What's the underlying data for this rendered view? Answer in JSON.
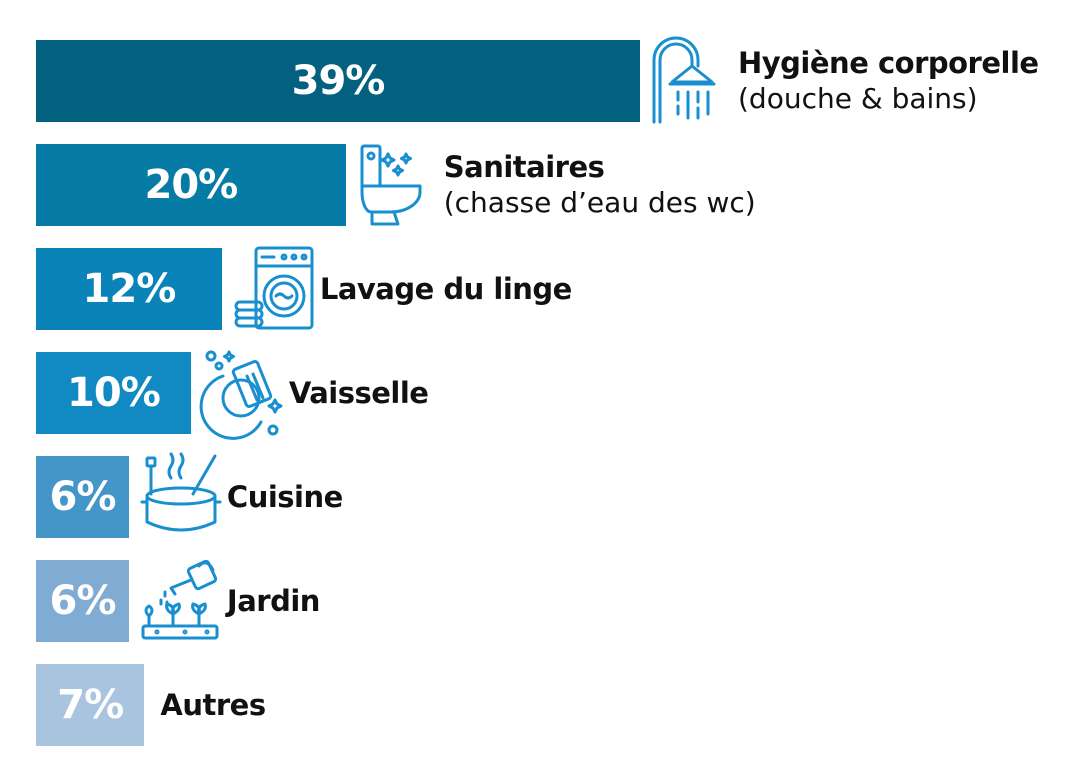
{
  "chart_data": {
    "type": "bar",
    "orientation": "horizontal",
    "categories": [
      {
        "label": "Hygiène corporelle",
        "sublabel": "(douche & bains)",
        "value": 39,
        "value_label": "39%",
        "color": "#04607f",
        "icon": "shower-icon"
      },
      {
        "label": "Sanitaires",
        "sublabel": "(chasse d’eau des wc)",
        "value": 20,
        "value_label": "20%",
        "color": "#067ba5",
        "icon": "toilet-icon"
      },
      {
        "label": "Lavage du linge",
        "sublabel": "",
        "value": 12,
        "value_label": "12%",
        "color": "#0a84b8",
        "icon": "washing-machine-icon"
      },
      {
        "label": "Vaisselle",
        "sublabel": "",
        "value": 10,
        "value_label": "10%",
        "color": "#1189c3",
        "icon": "dish-washing-icon"
      },
      {
        "label": "Cuisine",
        "sublabel": "",
        "value": 6,
        "value_label": "6%",
        "color": "#4596c8",
        "icon": "cooking-pot-icon"
      },
      {
        "label": "Jardin",
        "sublabel": "",
        "value": 6,
        "value_label": "6%",
        "color": "#80abd2",
        "icon": "watering-can-icon"
      },
      {
        "label": "Autres",
        "sublabel": "",
        "value": 7,
        "value_label": "7%",
        "color": "#a8c4df",
        "icon": ""
      }
    ],
    "unit": "%",
    "xlim": [
      0,
      39
    ],
    "grid": false,
    "legend": "none"
  },
  "icon_color": "#1a8fd0"
}
